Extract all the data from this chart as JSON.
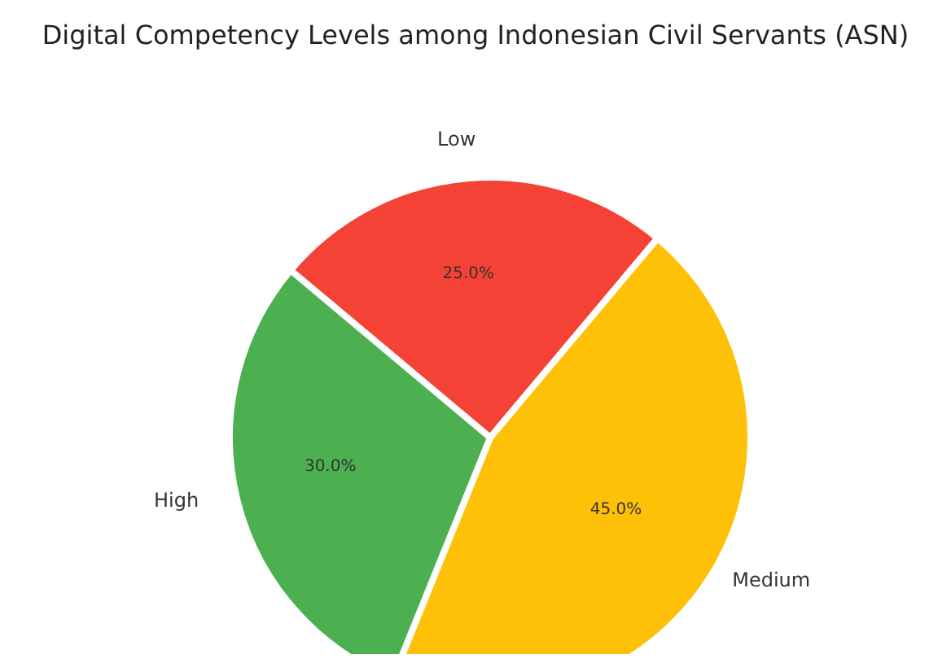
{
  "chart_data": {
    "type": "pie",
    "title": "Digital Competency Levels among Indonesian Civil Servants (ASN)",
    "categories": [
      "Low",
      "Medium",
      "High"
    ],
    "values": [
      25,
      45,
      30
    ],
    "value_labels": [
      "25.0%",
      "45.0%",
      "30.0%"
    ],
    "colors": [
      "#f44336",
      "#ffc107",
      "#4caf50"
    ]
  }
}
